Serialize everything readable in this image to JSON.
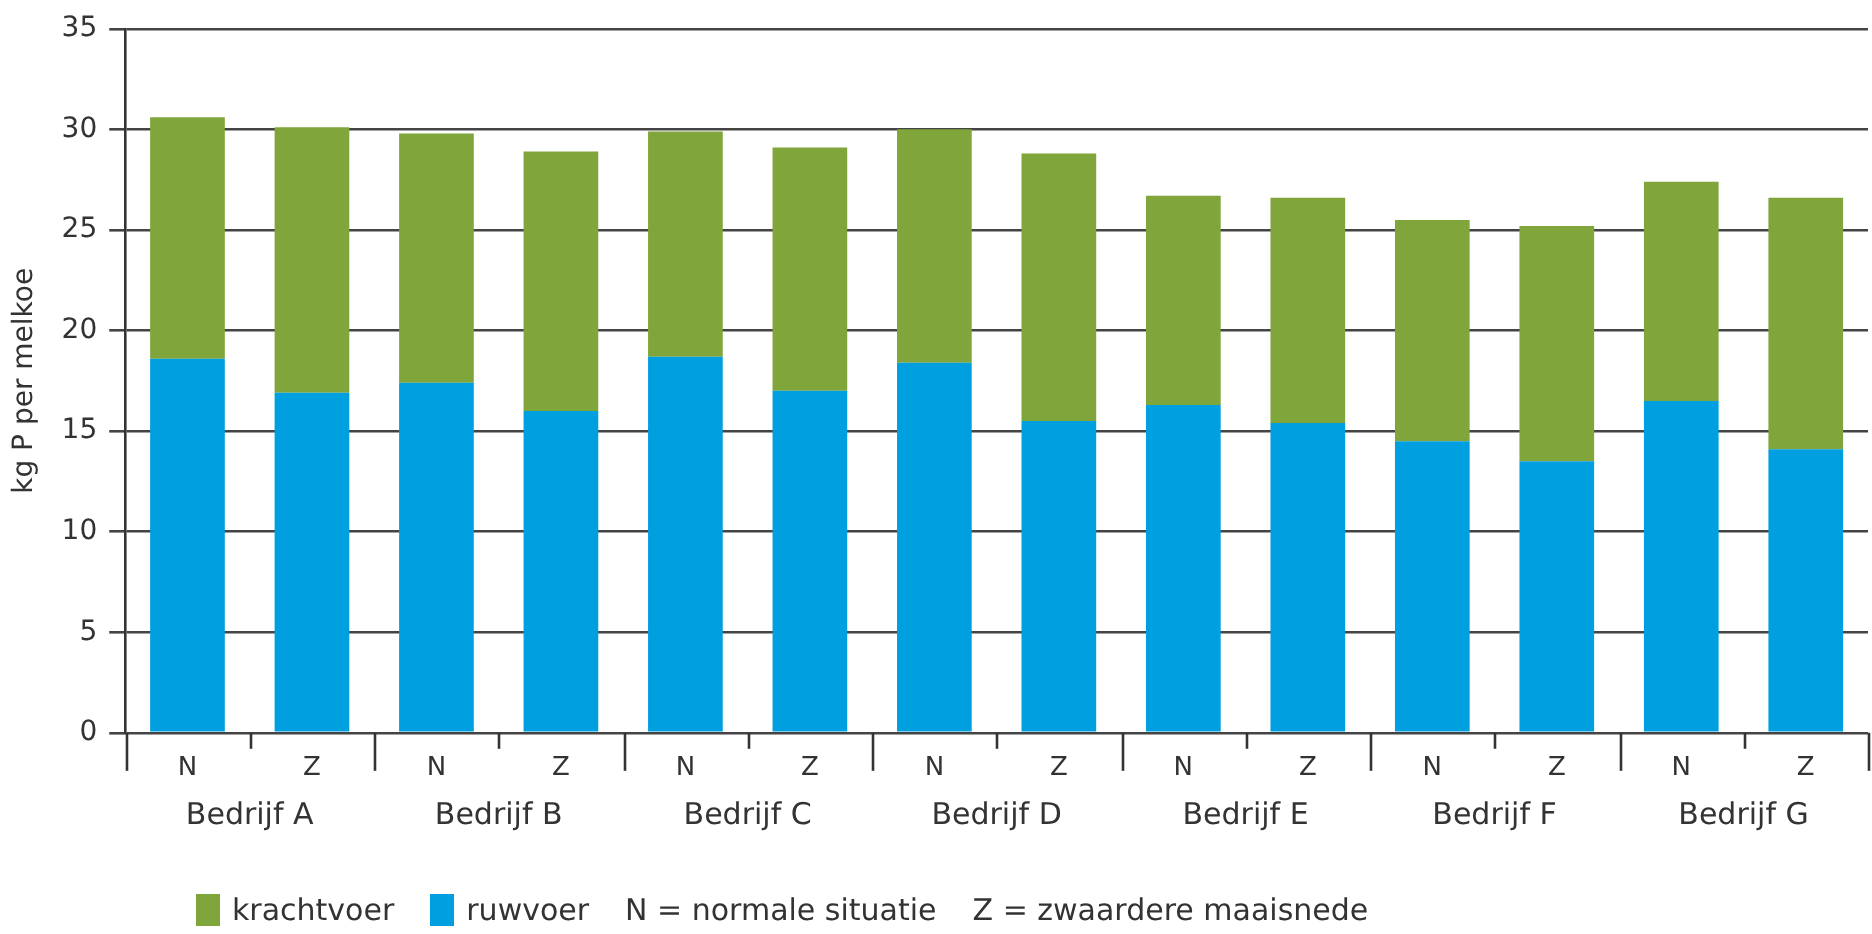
{
  "chart_data": {
    "type": "bar",
    "stacked": true,
    "ylabel": "kg P per melkoe",
    "categories": [
      "N",
      "Z",
      "N",
      "Z",
      "N",
      "Z",
      "N",
      "Z",
      "N",
      "Z",
      "N",
      "Z",
      "N",
      "Z"
    ],
    "series": [
      {
        "name": "ruwvoer",
        "color": "#009fe0",
        "values": [
          18.6,
          16.9,
          17.4,
          16.0,
          18.7,
          17.0,
          18.4,
          15.5,
          16.3,
          15.4,
          14.5,
          13.5,
          16.5,
          14.1
        ]
      },
      {
        "name": "krachtvoer",
        "color": "#80a53a",
        "values": [
          12.0,
          13.2,
          12.4,
          12.9,
          11.2,
          12.1,
          11.6,
          13.3,
          10.4,
          11.2,
          11.0,
          11.7,
          10.9,
          12.5
        ]
      }
    ],
    "ylim": [
      0,
      35
    ],
    "yticks": [
      0,
      5,
      10,
      15,
      20,
      25,
      30,
      35
    ],
    "grid": "y",
    "legend": "bottom",
    "annotations": [
      "Bedrijf A",
      "Bedrijf B",
      "Bedrijf C",
      "Bedrijf D",
      "Bedrijf E",
      "Bedrijf F",
      "Bedrijf G",
      "N = normale situatie",
      "Z = zwaardere maaisnede"
    ]
  }
}
